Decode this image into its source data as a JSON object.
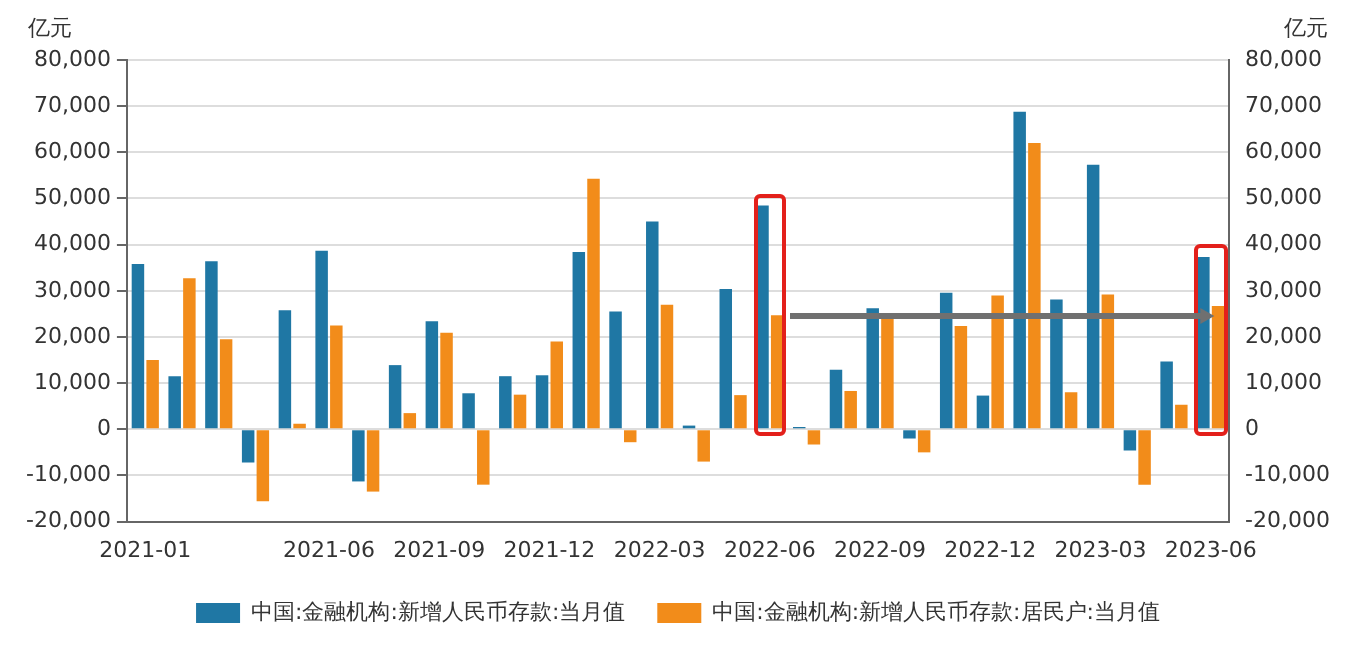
{
  "chart_data": {
    "type": "bar",
    "categories": [
      "2021-01",
      null,
      null,
      null,
      null,
      "2021-06",
      null,
      null,
      "2021-09",
      null,
      null,
      "2021-12",
      null,
      null,
      "2022-03",
      null,
      null,
      "2022-06",
      null,
      null,
      "2022-09",
      null,
      null,
      "2022-12",
      null,
      null,
      "2023-03",
      null,
      null,
      "2023-06"
    ],
    "series": [
      {
        "name": "中国:金融机构:新增人民币存款:当月值",
        "color": "#1f77a4",
        "values": [
          35800,
          11500,
          36400,
          -7200,
          25800,
          38700,
          -11300,
          13900,
          23400,
          7800,
          11500,
          11700,
          38400,
          25500,
          45000,
          800,
          30400,
          48500,
          500,
          12900,
          26200,
          -2000,
          29600,
          7300,
          68800,
          28100,
          57300,
          -4600,
          14700,
          37300
        ]
      },
      {
        "name": "中国:金融机构:新增人民币存款:居民户:当月值",
        "color": "#f28c1a",
        "values": [
          15000,
          32700,
          19500,
          -15600,
          1200,
          22500,
          -13500,
          3500,
          20900,
          -12000,
          7500,
          19000,
          54300,
          -2800,
          27000,
          -7000,
          7400,
          24700,
          -3300,
          8300,
          23900,
          -5000,
          22400,
          29000,
          62000,
          8000,
          29200,
          -12000,
          5300,
          26700
        ]
      }
    ],
    "ylabel": "亿元",
    "y2label": "亿元",
    "ylim": [
      -20000,
      80000
    ],
    "yticks": [
      {
        "value": -20000,
        "label": "-20,000"
      },
      {
        "value": -10000,
        "label": "-10,000"
      },
      {
        "value": 0,
        "label": "0"
      },
      {
        "value": 10000,
        "label": "10,000"
      },
      {
        "value": 20000,
        "label": "20,000"
      },
      {
        "value": 30000,
        "label": "30,000"
      },
      {
        "value": 40000,
        "label": "40,000"
      },
      {
        "value": 50000,
        "label": "50,000"
      },
      {
        "value": 60000,
        "label": "60,000"
      },
      {
        "value": 70000,
        "label": "70,000"
      },
      {
        "value": 80000,
        "label": "80,000"
      }
    ],
    "y2lim": [
      -20000,
      80000
    ],
    "y2ticks": [
      {
        "value": -20000,
        "label": "-20,000"
      },
      {
        "value": -10000,
        "label": "-10,000"
      },
      {
        "value": 0,
        "label": "0"
      },
      {
        "value": 10000,
        "label": "10,000"
      },
      {
        "value": 20000,
        "label": "20,000"
      },
      {
        "value": 30000,
        "label": "30,000"
      },
      {
        "value": 40000,
        "label": "40,000"
      },
      {
        "value": 50000,
        "label": "50,000"
      },
      {
        "value": 60000,
        "label": "60,000"
      },
      {
        "value": 70000,
        "label": "70,000"
      },
      {
        "value": 80000,
        "label": "80,000"
      }
    ],
    "grid": "y",
    "legend": "bottom"
  }
}
